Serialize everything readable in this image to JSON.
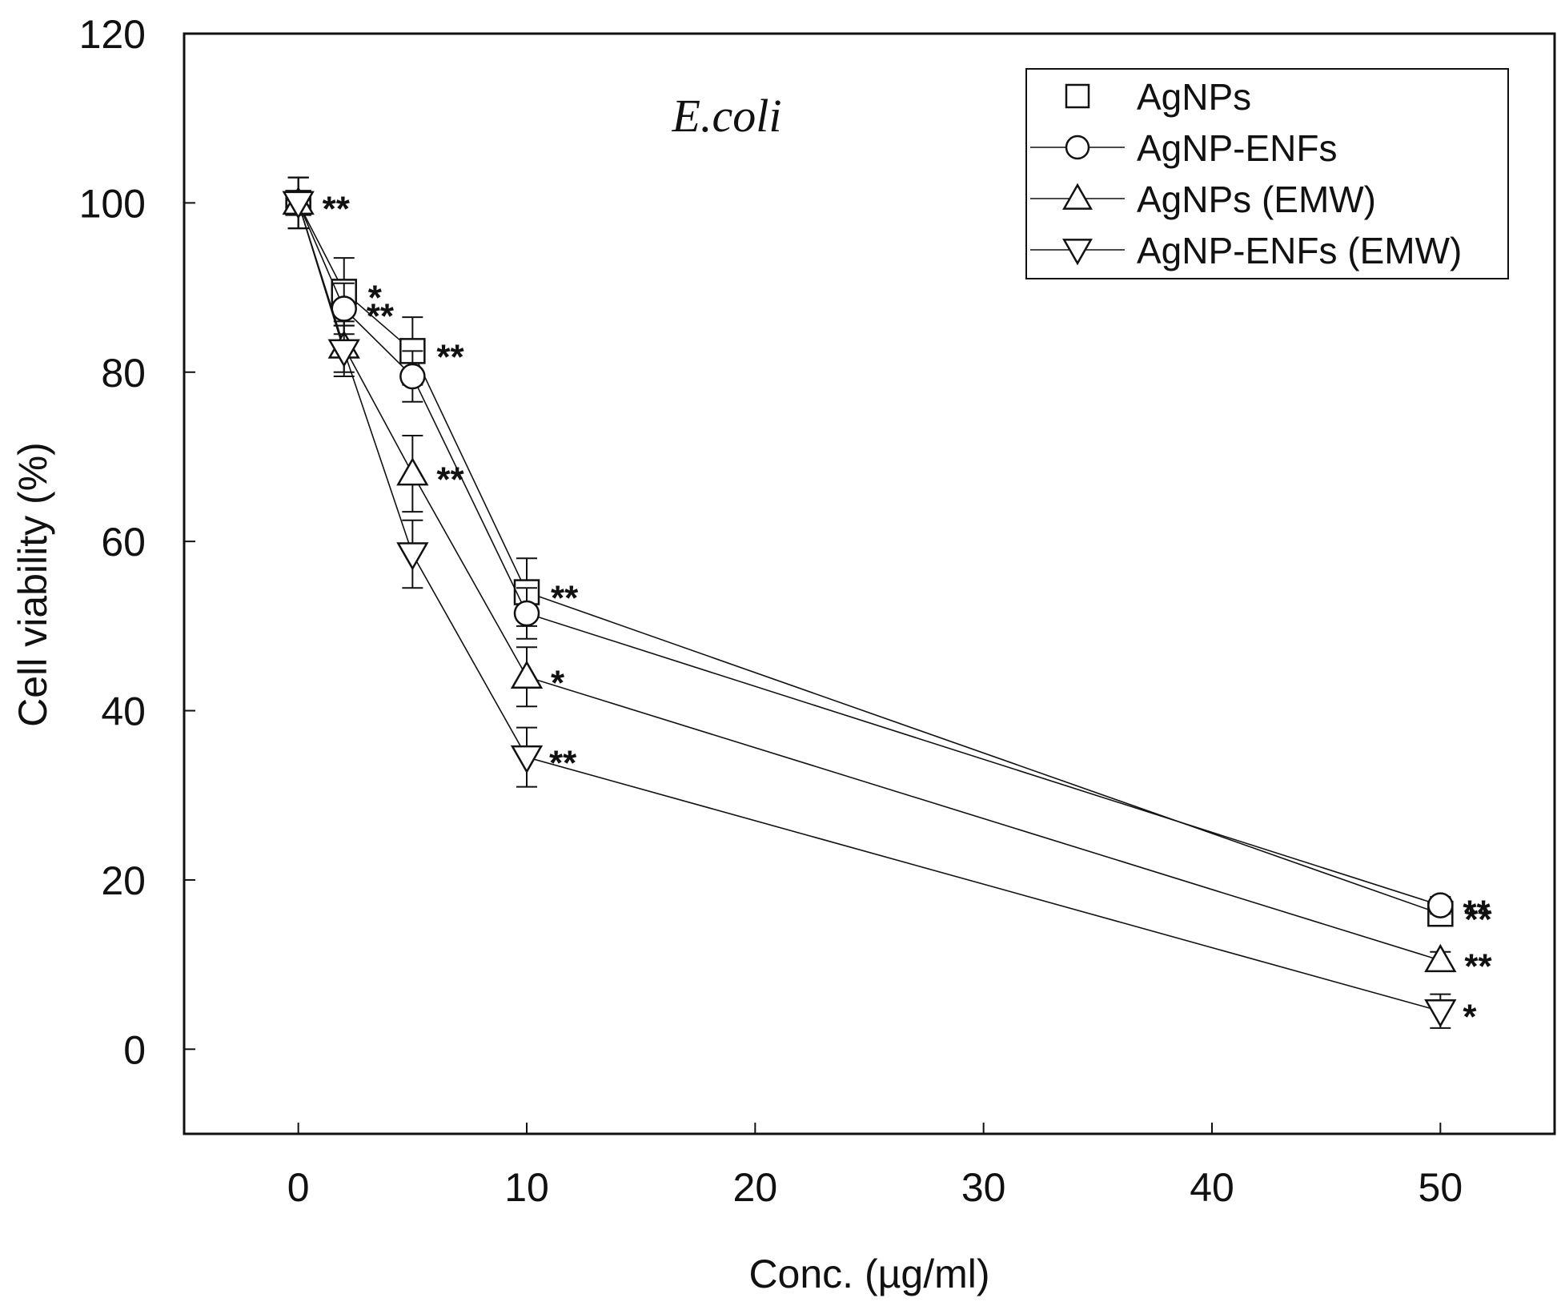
{
  "chart_data": {
    "type": "line",
    "title": "",
    "annotation_title": "E.coli",
    "xlabel": "Conc. (µg/ml)",
    "ylabel": "Cell viability (%)",
    "xlim": [
      -5,
      55
    ],
    "ylim": [
      -10,
      120
    ],
    "xticks": [
      0,
      10,
      20,
      30,
      40,
      50
    ],
    "yticks": [
      0,
      20,
      40,
      60,
      80,
      100,
      120
    ],
    "grid": false,
    "legend_position": "top-right",
    "x": [
      0,
      2,
      5,
      10,
      50
    ],
    "series": [
      {
        "name": "AgNPs",
        "marker": "square",
        "values": [
          100,
          89.5,
          82.5,
          54,
          16
        ],
        "errors": [
          3,
          4,
          4,
          4,
          1
        ],
        "labels": [
          "**",
          "*",
          "**",
          "**",
          "**"
        ]
      },
      {
        "name": "AgNP-ENFs",
        "marker": "circle",
        "values": [
          100,
          87.5,
          79.5,
          51.5,
          17
        ],
        "errors": [
          3,
          3,
          3,
          3,
          1
        ],
        "labels": [
          "",
          "**",
          "",
          "",
          "**"
        ]
      },
      {
        "name": "AgNPs (EMW)",
        "marker": "triangle-up",
        "values": [
          100,
          83,
          68,
          44,
          10.5
        ],
        "errors": [
          3,
          3,
          4.5,
          3.5,
          1
        ],
        "labels": [
          "",
          "",
          "**",
          "*",
          "**"
        ]
      },
      {
        "name": "AgNP-ENFs (EMW)",
        "marker": "triangle-down",
        "values": [
          100,
          82.5,
          58.5,
          34.5,
          4.5
        ],
        "errors": [
          3,
          3,
          4,
          3.5,
          2
        ],
        "labels": [
          "",
          "",
          "",
          "**",
          "*"
        ]
      }
    ]
  }
}
